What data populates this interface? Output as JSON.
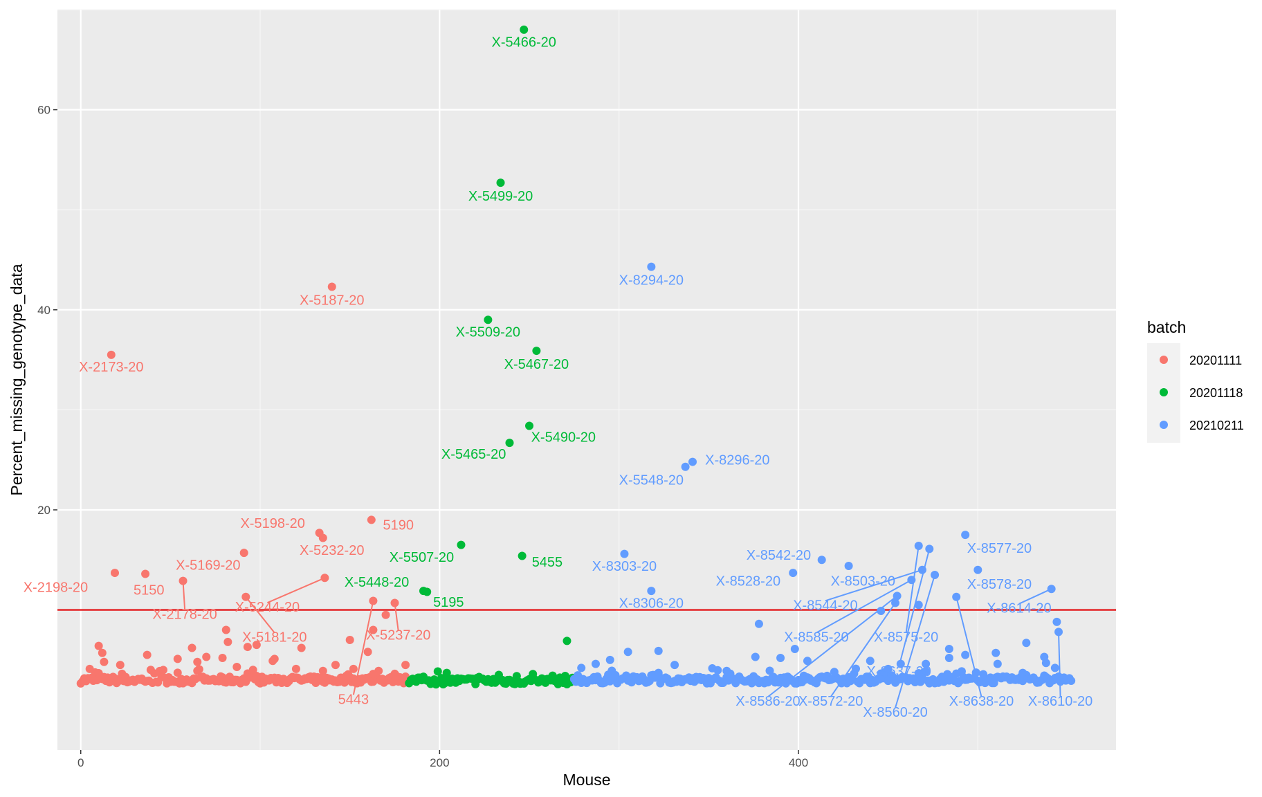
{
  "chart_data": {
    "type": "scatter",
    "xlabel": "Mouse",
    "ylabel": "Percent_missing_genotype_data",
    "xlim": [
      -13,
      577
    ],
    "ylim": [
      -4,
      70
    ],
    "x_ticks": [
      0,
      200,
      400
    ],
    "y_ticks": [
      20,
      40,
      60
    ],
    "threshold_line": {
      "y": 10,
      "color": "#e31a1c"
    },
    "grid": true,
    "legend": {
      "title": "batch",
      "position": "right",
      "entries": [
        {
          "label": "20201111",
          "color": "#F8766D"
        },
        {
          "label": "20201118",
          "color": "#00BA38"
        },
        {
          "label": "20210211",
          "color": "#619CFF"
        }
      ]
    },
    "series": [
      {
        "name": "20201111",
        "color": "#F8766D",
        "x_range": [
          0,
          183
        ],
        "baseline_y": 3.0,
        "points": [
          {
            "x": 17,
            "y": 35.5,
            "label": "X-2173-20",
            "lx": 17,
            "ly": 34.3
          },
          {
            "x": 140,
            "y": 42.3,
            "label": "X-5187-20",
            "lx": 140,
            "ly": 41.0
          },
          {
            "x": 162,
            "y": 19.0,
            "label": "5190",
            "lx": 177,
            "ly": 18.5
          },
          {
            "x": 133,
            "y": 17.7,
            "label": "X-5198-20",
            "lx": 107,
            "ly": 18.7
          },
          {
            "x": 135,
            "y": 17.2,
            "label": "X-5232-20",
            "lx": 140,
            "ly": 16.0
          },
          {
            "x": 91,
            "y": 15.7,
            "label": "X-5169-20",
            "lx": 71,
            "ly": 14.5
          },
          {
            "x": 19,
            "y": 13.7,
            "label": "X-2198-20",
            "lx": -14,
            "ly": 12.3
          },
          {
            "x": 36,
            "y": 13.6,
            "label": "5150",
            "lx": 38,
            "ly": 12.0
          },
          {
            "x": 57,
            "y": 12.9,
            "label": "X-2178-20",
            "lx": 58,
            "ly": 9.6,
            "line": true
          },
          {
            "x": 136,
            "y": 13.2,
            "label": "X-5244-20",
            "lx": 104,
            "ly": 10.3,
            "line": true
          },
          {
            "x": 92,
            "y": 11.3,
            "label": "X-5181-20",
            "lx": 108,
            "ly": 7.3,
            "line": true
          },
          {
            "x": 163,
            "y": 10.9,
            "label": "5443",
            "lx": 152,
            "ly": 1.1,
            "line": true
          },
          {
            "x": 175,
            "y": 10.7,
            "label": "X-5237-20",
            "lx": 177,
            "ly": 7.5,
            "line": true
          },
          {
            "x": 170,
            "y": 9.5
          },
          {
            "x": 163,
            "y": 8.0
          },
          {
            "x": 150,
            "y": 7.0
          },
          {
            "x": 160,
            "y": 5.8
          },
          {
            "x": 81,
            "y": 8.0
          },
          {
            "x": 82,
            "y": 6.8
          },
          {
            "x": 123,
            "y": 6.2
          },
          {
            "x": 10,
            "y": 6.4
          },
          {
            "x": 12,
            "y": 5.7
          },
          {
            "x": 13,
            "y": 4.8
          },
          {
            "x": 37,
            "y": 5.5
          },
          {
            "x": 62,
            "y": 6.2
          },
          {
            "x": 70,
            "y": 5.3
          },
          {
            "x": 79,
            "y": 5.2
          },
          {
            "x": 93,
            "y": 6.3
          },
          {
            "x": 98,
            "y": 6.5
          },
          {
            "x": 108,
            "y": 5.1
          },
          {
            "x": 107,
            "y": 4.9
          },
          {
            "x": 135,
            "y": 3.9
          },
          {
            "x": 142,
            "y": 4.5
          },
          {
            "x": 152,
            "y": 4.1
          },
          {
            "x": 163,
            "y": 3.6
          },
          {
            "x": 181,
            "y": 4.5
          },
          {
            "x": 54,
            "y": 5.1
          },
          {
            "x": 65,
            "y": 4.8
          },
          {
            "x": 5,
            "y": 4.1
          },
          {
            "x": 22,
            "y": 4.5
          },
          {
            "x": 46,
            "y": 4.0
          },
          {
            "x": 87,
            "y": 4.3
          },
          {
            "x": 120,
            "y": 4.1
          }
        ]
      },
      {
        "name": "20201118",
        "color": "#00BA38",
        "x_range": [
          183,
          275
        ],
        "baseline_y": 2.9,
        "points": [
          {
            "x": 247,
            "y": 68.0,
            "label": "X-5466-20",
            "lx": 247,
            "ly": 66.8
          },
          {
            "x": 234,
            "y": 52.7,
            "label": "X-5499-20",
            "lx": 234,
            "ly": 51.4
          },
          {
            "x": 227,
            "y": 39.0,
            "label": "X-5509-20",
            "lx": 227,
            "ly": 37.8
          },
          {
            "x": 254,
            "y": 35.9,
            "label": "X-5467-20",
            "lx": 254,
            "ly": 34.6
          },
          {
            "x": 250,
            "y": 28.4,
            "label": "X-5490-20",
            "lx": 269,
            "ly": 27.3
          },
          {
            "x": 239,
            "y": 26.7,
            "label": "X-5465-20",
            "lx": 219,
            "ly": 25.6
          },
          {
            "x": 212,
            "y": 16.5,
            "label": "X-5507-20",
            "lx": 190,
            "ly": 15.3
          },
          {
            "x": 246,
            "y": 15.4,
            "label": "5455",
            "lx": 260,
            "ly": 14.8
          },
          {
            "x": 191,
            "y": 11.9,
            "label": "X-5448-20",
            "lx": 165,
            "ly": 12.8
          },
          {
            "x": 193,
            "y": 11.8,
            "label": "5195",
            "lx": 205,
            "ly": 10.8
          },
          {
            "x": 271,
            "y": 6.9
          },
          {
            "x": 204,
            "y": 3.7
          },
          {
            "x": 233,
            "y": 3.5
          },
          {
            "x": 270,
            "y": 3.4
          },
          {
            "x": 188,
            "y": 3.2
          },
          {
            "x": 222,
            "y": 3.3
          }
        ]
      },
      {
        "name": "20210211",
        "color": "#619CFF",
        "x_range": [
          275,
          553
        ],
        "baseline_y": 3.0,
        "points": [
          {
            "x": 318,
            "y": 44.3,
            "label": "X-8294-20",
            "lx": 318,
            "ly": 43.0
          },
          {
            "x": 341,
            "y": 24.8,
            "label": "X-8296-20",
            "lx": 366,
            "ly": 25.0
          },
          {
            "x": 337,
            "y": 24.3,
            "label": "X-5548-20",
            "lx": 318,
            "ly": 23.0
          },
          {
            "x": 303,
            "y": 15.6,
            "label": "X-8303-20",
            "lx": 303,
            "ly": 14.4
          },
          {
            "x": 318,
            "y": 11.9,
            "label": "X-8306-20",
            "lx": 318,
            "ly": 10.7
          },
          {
            "x": 413,
            "y": 15.0,
            "label": "X-8542-20",
            "lx": 389,
            "ly": 15.5
          },
          {
            "x": 397,
            "y": 13.7,
            "label": "X-8528-20",
            "lx": 372,
            "ly": 12.9
          },
          {
            "x": 428,
            "y": 14.4,
            "label": "X-8503-20",
            "lx": 436,
            "ly": 12.9
          },
          {
            "x": 493,
            "y": 17.5,
            "label": "X-8577-20",
            "lx": 512,
            "ly": 16.2
          },
          {
            "x": 500,
            "y": 14.0,
            "label": "X-8578-20",
            "lx": 512,
            "ly": 12.6
          },
          {
            "x": 541,
            "y": 12.1,
            "label": "X-8614-20",
            "lx": 523,
            "ly": 10.2,
            "line": true
          },
          {
            "x": 467,
            "y": 16.4,
            "label": "X-8575-20",
            "lx": 460,
            "ly": 7.3,
            "line": true
          },
          {
            "x": 469,
            "y": 14.0,
            "label": "X-8544-20",
            "lx": 415,
            "ly": 10.5,
            "line": true
          },
          {
            "x": 463,
            "y": 13.0,
            "label": "X-8585-20",
            "lx": 410,
            "ly": 7.3,
            "line": true
          },
          {
            "x": 473,
            "y": 16.1,
            "label": "X-8637-20",
            "lx": 456,
            "ly": 3.9,
            "line": true
          },
          {
            "x": 455,
            "y": 11.4,
            "label": "X-8586-20",
            "lx": 383,
            "ly": 0.9,
            "line": true
          },
          {
            "x": 454,
            "y": 10.7,
            "label": "X-8572-20",
            "lx": 418,
            "ly": 0.9,
            "line": true
          },
          {
            "x": 476,
            "y": 13.5,
            "label": "X-8560-20",
            "lx": 454,
            "ly": -0.2,
            "line": true
          },
          {
            "x": 488,
            "y": 11.3,
            "label": "X-8638-20",
            "lx": 502,
            "ly": 0.9,
            "line": true
          },
          {
            "x": 545,
            "y": 7.8,
            "label": "X-8610-20",
            "lx": 546,
            "ly": 0.9,
            "line": true
          },
          {
            "x": 378,
            "y": 8.6
          },
          {
            "x": 446,
            "y": 9.9
          },
          {
            "x": 467,
            "y": 10.5
          },
          {
            "x": 544,
            "y": 8.8
          },
          {
            "x": 305,
            "y": 5.8
          },
          {
            "x": 322,
            "y": 5.9
          },
          {
            "x": 295,
            "y": 5.0
          },
          {
            "x": 287,
            "y": 4.6
          },
          {
            "x": 331,
            "y": 4.5
          },
          {
            "x": 376,
            "y": 5.3
          },
          {
            "x": 390,
            "y": 5.2
          },
          {
            "x": 398,
            "y": 6.1
          },
          {
            "x": 405,
            "y": 4.9
          },
          {
            "x": 440,
            "y": 4.9
          },
          {
            "x": 450,
            "y": 4.1
          },
          {
            "x": 457,
            "y": 4.6
          },
          {
            "x": 471,
            "y": 4.6
          },
          {
            "x": 484,
            "y": 5.2
          },
          {
            "x": 493,
            "y": 5.5
          },
          {
            "x": 510,
            "y": 5.7
          },
          {
            "x": 511,
            "y": 4.6
          },
          {
            "x": 527,
            "y": 6.7
          },
          {
            "x": 537,
            "y": 5.3
          },
          {
            "x": 538,
            "y": 4.7
          },
          {
            "x": 543,
            "y": 4.2
          },
          {
            "x": 484,
            "y": 6.1
          },
          {
            "x": 279,
            "y": 4.2
          },
          {
            "x": 360,
            "y": 3.9
          },
          {
            "x": 420,
            "y": 3.8
          },
          {
            "x": 525,
            "y": 3.7
          }
        ]
      }
    ]
  }
}
